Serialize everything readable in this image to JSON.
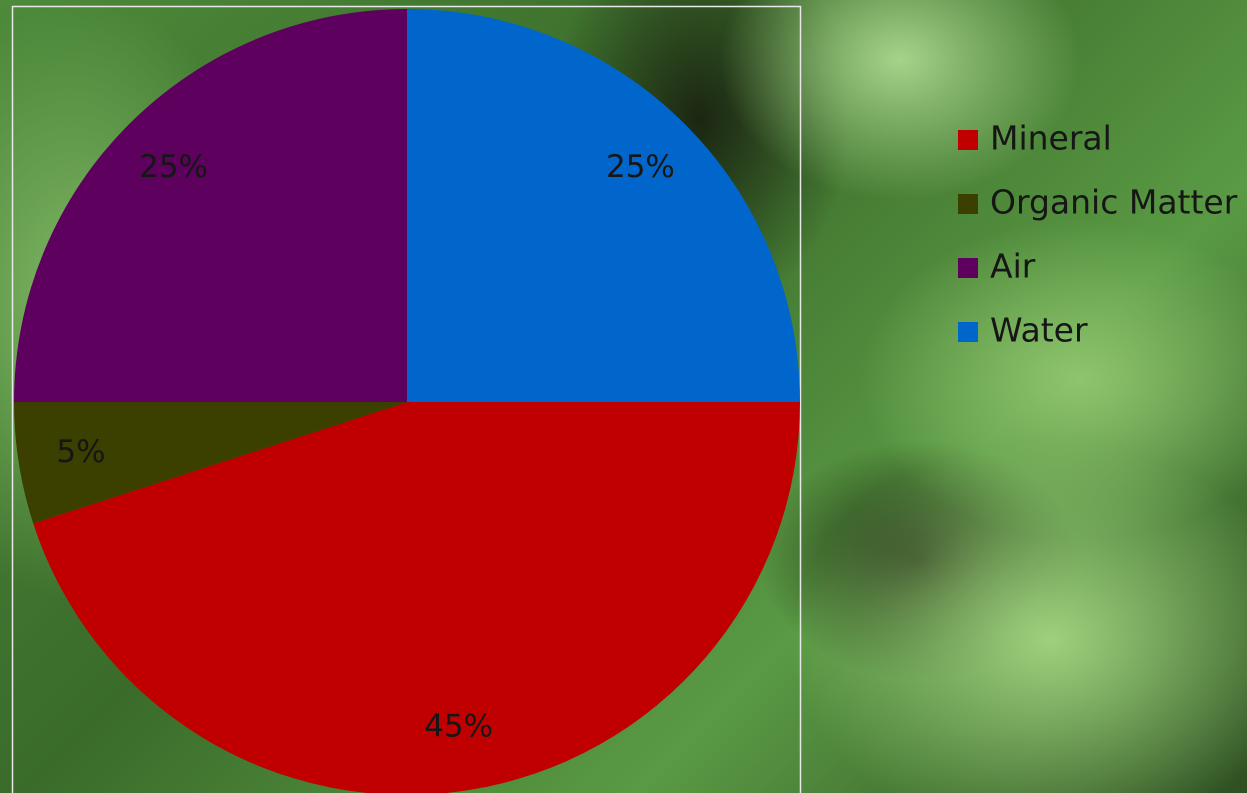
{
  "chart_data": {
    "type": "pie",
    "categories": [
      "Mineral",
      "Organic Matter",
      "Air",
      "Water"
    ],
    "values": [
      45,
      5,
      25,
      25
    ],
    "value_labels": [
      "45%",
      "5%",
      "25%",
      "25%"
    ],
    "colors": [
      "#c00000",
      "#3b3f00",
      "#5e005e",
      "#0066cc"
    ],
    "legend": "right"
  }
}
